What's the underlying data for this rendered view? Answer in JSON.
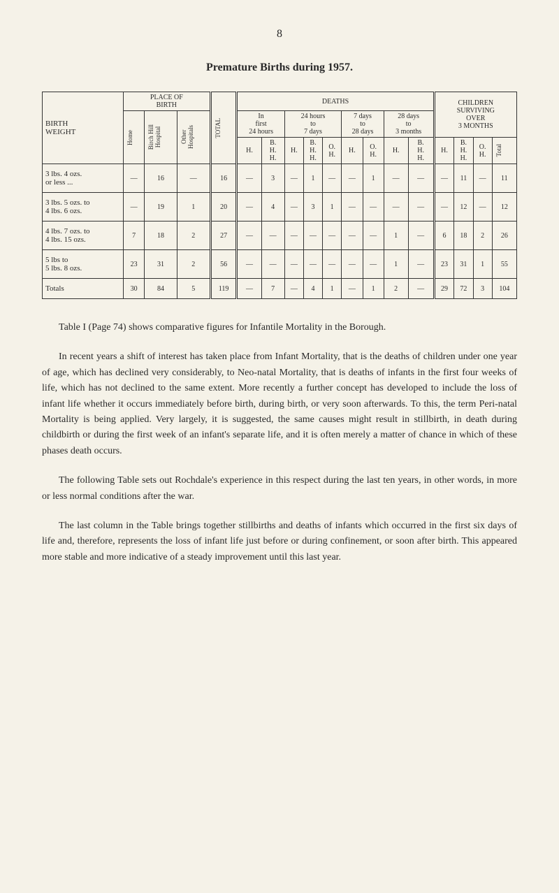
{
  "page_number": "8",
  "title": "Premature Births during 1957.",
  "table": {
    "header_groups": {
      "birth_weight": "BIRTH\nWEIGHT",
      "place_of_birth": "PLACE OF\nBIRTH",
      "total": "TOTAL",
      "deaths": "DEATHS",
      "children_surviving": "CHILDREN\nSURVIVING\nOVER\n3 MONTHS"
    },
    "place_subheaders": {
      "home": "Home",
      "birch_hill": "Birch Hill\nHospital",
      "other": "Other\nHospitals"
    },
    "deaths_periods": {
      "in_first_24h": "In\nfirst\n24 hours",
      "24h_to_7d": "24 hours\nto\n7 days",
      "7d_to_28d": "7 days\nto\n28 days",
      "28d_to_3m": "28 days\nto\n3 months"
    },
    "column_labels": {
      "h": "H.",
      "bhh": "B.\nH.\nH.",
      "oh": "O.\nH.",
      "total": "Total"
    },
    "rows": [
      {
        "label": "3 lbs. 4 ozs.\nor less   ...",
        "home": "—",
        "birch": "16",
        "other": "—",
        "total": "16",
        "d1_h": "—",
        "d1_bhh": "3",
        "d2_h": "—",
        "d2_bhh": "1",
        "d2_oh": "—",
        "d3_h": "—",
        "d3_oh": "1",
        "d4_h": "—",
        "d4_bhh": "—",
        "s_h": "—",
        "s_bhh": "11",
        "s_oh": "—",
        "s_total": "11"
      },
      {
        "label": "3 lbs. 5 ozs. to\n4 lbs. 6 ozs.",
        "home": "—",
        "birch": "19",
        "other": "1",
        "total": "20",
        "d1_h": "—",
        "d1_bhh": "4",
        "d2_h": "—",
        "d2_bhh": "3",
        "d2_oh": "1",
        "d3_h": "—",
        "d3_oh": "—",
        "d4_h": "—",
        "d4_bhh": "—",
        "s_h": "—",
        "s_bhh": "12",
        "s_oh": "—",
        "s_total": "12"
      },
      {
        "label": "4 lbs. 7 ozs. to\n4 lbs. 15 ozs.",
        "home": "7",
        "birch": "18",
        "other": "2",
        "total": "27",
        "d1_h": "—",
        "d1_bhh": "—",
        "d2_h": "—",
        "d2_bhh": "—",
        "d2_oh": "—",
        "d3_h": "—",
        "d3_oh": "—",
        "d4_h": "1",
        "d4_bhh": "—",
        "s_h": "6",
        "s_bhh": "18",
        "s_oh": "2",
        "s_total": "26"
      },
      {
        "label": "5 lbs to\n5 lbs. 8 ozs.",
        "home": "23",
        "birch": "31",
        "other": "2",
        "total": "56",
        "d1_h": "—",
        "d1_bhh": "—",
        "d2_h": "—",
        "d2_bhh": "—",
        "d2_oh": "—",
        "d3_h": "—",
        "d3_oh": "—",
        "d4_h": "1",
        "d4_bhh": "—",
        "s_h": "23",
        "s_bhh": "31",
        "s_oh": "1",
        "s_total": "55"
      },
      {
        "label": "Totals",
        "home": "30",
        "birch": "84",
        "other": "5",
        "total": "119",
        "d1_h": "—",
        "d1_bhh": "7",
        "d2_h": "—",
        "d2_bhh": "4",
        "d2_oh": "1",
        "d3_h": "—",
        "d3_oh": "1",
        "d4_h": "2",
        "d4_bhh": "—",
        "s_h": "29",
        "s_bhh": "72",
        "s_oh": "3",
        "s_total": "104"
      }
    ]
  },
  "paragraphs": {
    "p1": "Table I (Page 74) shows comparative figures for Infantile Mortality in the Borough.",
    "p2": "In recent years a shift of interest has taken place from Infant Mortality, that is the deaths of children under one year of age, which has declined very considerably, to Neo-natal Mortality, that is deaths of infants in the first four weeks of life, which has not declined to the same extent. More recently a further concept has developed to include the loss of infant life whether it occurs immediately before birth, during birth, or very soon afterwards. To this, the term Peri-natal Mortality is being applied. Very largely, it is suggested, the same causes might result in stillbirth, in death during childbirth or during the first week of an infant's separate life, and it is often merely a matter of chance in which of these phases death occurs.",
    "p3": "The following Table sets out Rochdale's experience in this respect during the last ten years, in other words, in more or less normal conditions after the war.",
    "p4": "The last column in the Table brings together stillbirths and deaths of infants which occurred in the first six days of life and, therefore, represents the loss of infant life just before or during confinement, or soon after birth. This appeared more stable and more indicative of a steady improvement until this last year."
  }
}
